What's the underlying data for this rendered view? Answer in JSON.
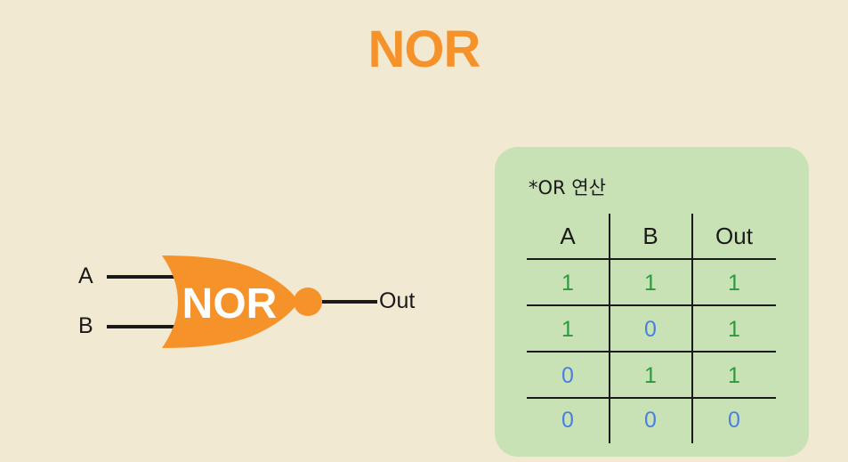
{
  "title": "NOR",
  "gate": {
    "label": "NOR",
    "input_a": "A",
    "input_b": "B",
    "output": "Out",
    "fill_color": "#f6922a"
  },
  "truth_table": {
    "note": "*OR 연산",
    "headers": [
      "A",
      "B",
      "Out"
    ],
    "rows": [
      [
        "1",
        "1",
        "1"
      ],
      [
        "1",
        "0",
        "1"
      ],
      [
        "0",
        "1",
        "1"
      ],
      [
        "0",
        "0",
        "0"
      ]
    ],
    "colors": {
      "one": "#2c9a3c",
      "zero": "#4a7fe0"
    }
  }
}
